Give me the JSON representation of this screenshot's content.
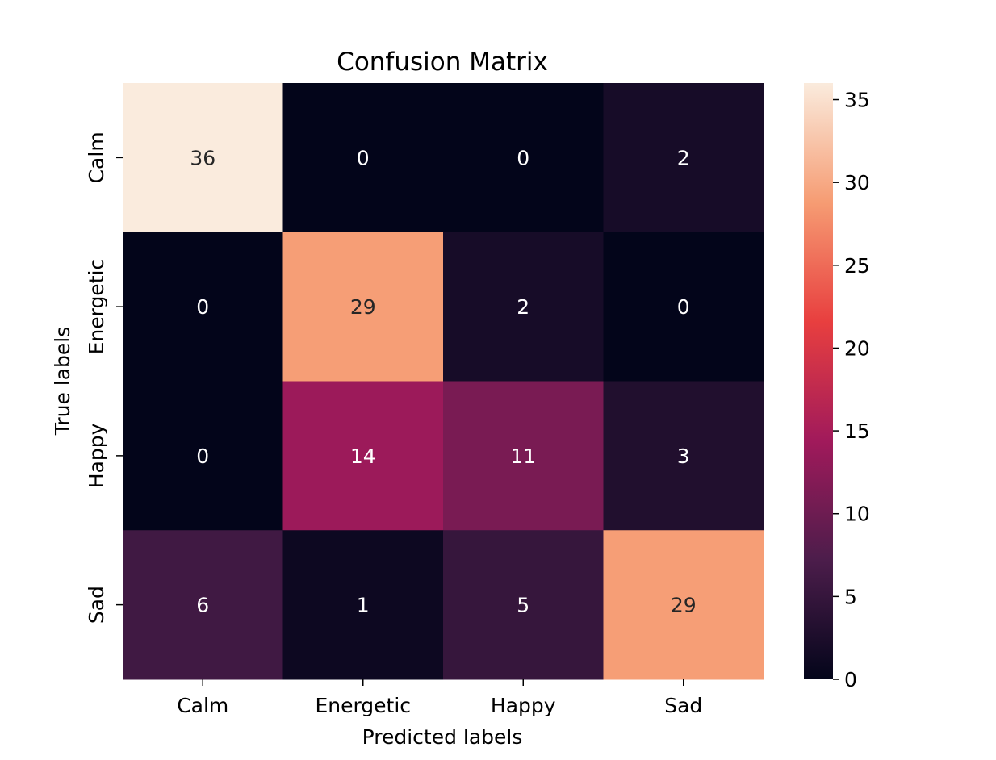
{
  "chart_data": {
    "type": "heatmap",
    "title": "Confusion Matrix",
    "xlabel": "Predicted labels",
    "ylabel": "True labels",
    "x_categories": [
      "Calm",
      "Energetic",
      "Happy",
      "Sad"
    ],
    "y_categories": [
      "Calm",
      "Energetic",
      "Happy",
      "Sad"
    ],
    "values": [
      [
        36,
        0,
        0,
        2
      ],
      [
        0,
        29,
        2,
        0
      ],
      [
        0,
        14,
        11,
        3
      ],
      [
        6,
        1,
        5,
        29
      ]
    ],
    "colorbar": {
      "range": [
        0,
        36
      ],
      "ticks": [
        0,
        5,
        10,
        15,
        20,
        25,
        30,
        35
      ]
    },
    "colormap": [
      "#03051a",
      "#4c1d4b",
      "#a11a5b",
      "#e83f3f",
      "#f69c73",
      "#faebdd"
    ],
    "grid": false
  }
}
